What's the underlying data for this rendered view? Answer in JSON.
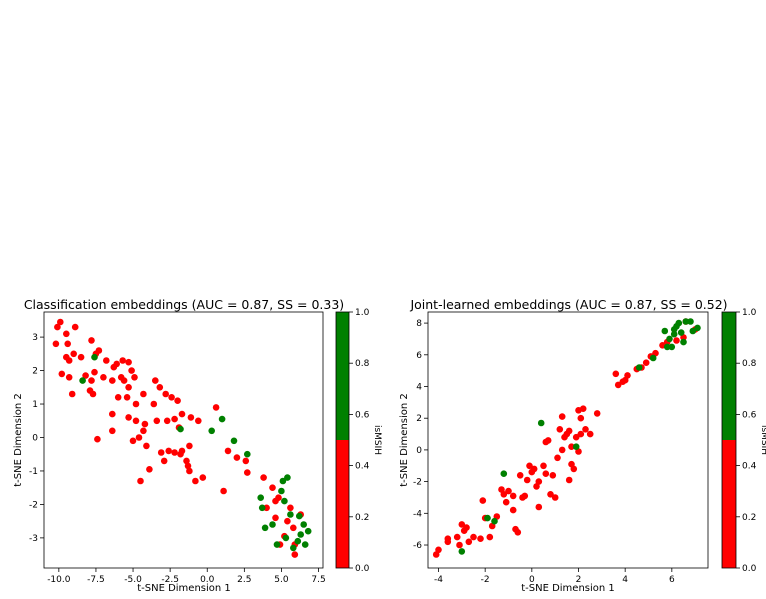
{
  "chart_data": [
    {
      "type": "scatter",
      "title": "Classification embeddings (AUC = 0.87, SS = 0.33)",
      "xlabel": "t-SNE Dimension 1",
      "ylabel": "t-SNE Dimension 2",
      "xlim": [
        -11.0,
        7.8
      ],
      "ylim": [
        -3.9,
        3.75
      ],
      "xticks": [
        "-10.0",
        "-7.5",
        "-5.0",
        "-2.5",
        "0.0",
        "2.5",
        "5.0",
        "7.5"
      ],
      "xtick_values": [
        -10.0,
        -7.5,
        -5.0,
        -2.5,
        0.0,
        2.5,
        5.0,
        7.5
      ],
      "yticks": [
        "-3",
        "-2",
        "-1",
        "0",
        "1",
        "2",
        "3"
      ],
      "ytick_values": [
        -3,
        -2,
        -1,
        0,
        1,
        2,
        3
      ],
      "colorbar": {
        "label": "isMSIH",
        "ticks": [
          "0.0",
          "0.2",
          "0.4",
          "0.6",
          "0.8",
          "1.0"
        ],
        "tick_values": [
          0.0,
          0.2,
          0.4,
          0.6,
          0.8,
          1.0
        ],
        "low_color": "#ff0000",
        "high_color": "#008000"
      },
      "colors": {
        "red": "#ff0000",
        "green": "#008000"
      },
      "red_points": [
        [
          -10.1,
          3.3
        ],
        [
          -9.9,
          3.45
        ],
        [
          -9.5,
          3.1
        ],
        [
          -8.9,
          3.3
        ],
        [
          -10.2,
          2.8
        ],
        [
          -9.4,
          2.8
        ],
        [
          -9.0,
          2.5
        ],
        [
          -9.5,
          2.4
        ],
        [
          -9.3,
          2.3
        ],
        [
          -8.5,
          2.4
        ],
        [
          -7.8,
          2.9
        ],
        [
          -7.5,
          2.5
        ],
        [
          -7.3,
          2.6
        ],
        [
          -6.8,
          2.3
        ],
        [
          -6.3,
          2.1
        ],
        [
          -6.1,
          2.2
        ],
        [
          -5.7,
          2.3
        ],
        [
          -5.3,
          2.25
        ],
        [
          -5.1,
          2.0
        ],
        [
          -4.9,
          1.8
        ],
        [
          -5.3,
          1.5
        ],
        [
          -5.6,
          1.7
        ],
        [
          -5.8,
          1.8
        ],
        [
          -6.4,
          1.7
        ],
        [
          -7.0,
          1.8
        ],
        [
          -7.6,
          1.95
        ],
        [
          -7.8,
          1.7
        ],
        [
          -8.2,
          1.85
        ],
        [
          -9.8,
          1.9
        ],
        [
          -9.3,
          1.8
        ],
        [
          -9.1,
          1.3
        ],
        [
          -7.9,
          1.4
        ],
        [
          -7.7,
          1.3
        ],
        [
          -6.0,
          1.2
        ],
        [
          -5.4,
          1.2
        ],
        [
          -3.5,
          1.7
        ],
        [
          -3.2,
          1.5
        ],
        [
          -4.3,
          1.3
        ],
        [
          -3.6,
          1.0
        ],
        [
          -2.8,
          1.3
        ],
        [
          -2.4,
          1.2
        ],
        [
          -2.0,
          1.1
        ],
        [
          -4.8,
          1.0
        ],
        [
          -6.4,
          0.7
        ],
        [
          -5.3,
          0.6
        ],
        [
          -4.8,
          0.5
        ],
        [
          -4.2,
          0.4
        ],
        [
          -3.4,
          0.5
        ],
        [
          -2.7,
          0.5
        ],
        [
          -2.2,
          0.55
        ],
        [
          -1.7,
          0.7
        ],
        [
          -1.1,
          0.6
        ],
        [
          -0.6,
          0.5
        ],
        [
          0.6,
          0.9
        ],
        [
          -4.3,
          0.2
        ],
        [
          -5.0,
          -0.1
        ],
        [
          -4.6,
          0.0
        ],
        [
          -6.4,
          0.2
        ],
        [
          -7.4,
          -0.05
        ],
        [
          -4.1,
          -0.25
        ],
        [
          -1.9,
          0.3
        ],
        [
          -2.6,
          -0.4
        ],
        [
          -2.2,
          -0.45
        ],
        [
          -1.7,
          -0.4
        ],
        [
          -1.2,
          -0.25
        ],
        [
          -1.4,
          -0.7
        ],
        [
          -1.3,
          -0.85
        ],
        [
          -1.2,
          -1.0
        ],
        [
          -3.1,
          -0.45
        ],
        [
          -3.9,
          -0.95
        ],
        [
          -2.9,
          -0.7
        ],
        [
          -1.8,
          -0.5
        ],
        [
          -4.5,
          -1.3
        ],
        [
          -0.3,
          -1.2
        ],
        [
          -0.8,
          -1.3
        ],
        [
          1.4,
          -0.4
        ],
        [
          2.0,
          -0.6
        ],
        [
          2.6,
          -0.7
        ],
        [
          2.7,
          -1.05
        ],
        [
          1.1,
          -1.6
        ],
        [
          3.8,
          -1.2
        ],
        [
          4.4,
          -1.5
        ],
        [
          4.8,
          -1.8
        ],
        [
          4.0,
          -2.1
        ],
        [
          4.6,
          -1.9
        ],
        [
          5.6,
          -2.1
        ],
        [
          4.6,
          -2.4
        ],
        [
          5.4,
          -2.5
        ],
        [
          6.3,
          -2.3
        ],
        [
          5.8,
          -2.7
        ],
        [
          5.2,
          -2.95
        ],
        [
          5.9,
          -3.2
        ],
        [
          5.9,
          -3.5
        ],
        [
          4.9,
          -3.2
        ]
      ],
      "green_points": [
        [
          -8.4,
          1.7
        ],
        [
          -7.6,
          2.4
        ],
        [
          -1.8,
          0.25
        ],
        [
          0.3,
          0.2
        ],
        [
          1.0,
          0.55
        ],
        [
          1.8,
          -0.1
        ],
        [
          2.7,
          -0.5
        ],
        [
          3.6,
          -1.8
        ],
        [
          3.7,
          -2.1
        ],
        [
          3.9,
          -2.7
        ],
        [
          4.4,
          -2.6
        ],
        [
          5.1,
          -1.3
        ],
        [
          5.4,
          -1.2
        ],
        [
          5.0,
          -1.6
        ],
        [
          5.2,
          -1.9
        ],
        [
          5.6,
          -2.3
        ],
        [
          6.2,
          -2.35
        ],
        [
          6.5,
          -2.6
        ],
        [
          6.8,
          -2.8
        ],
        [
          6.3,
          -2.9
        ],
        [
          6.1,
          -3.1
        ],
        [
          6.6,
          -3.2
        ],
        [
          5.8,
          -3.3
        ],
        [
          5.3,
          -3.0
        ],
        [
          4.7,
          -3.2
        ]
      ]
    },
    {
      "type": "scatter",
      "title": "Joint-learned embeddings (AUC = 0.87, SS = 0.52)",
      "xlabel": "t-SNE Dimension 1",
      "ylabel": "t-SNE Dimension 2",
      "xlim": [
        -4.45,
        7.55
      ],
      "ylim": [
        -7.45,
        8.7
      ],
      "xticks": [
        "-4",
        "-2",
        "0",
        "2",
        "4",
        "6"
      ],
      "xtick_values": [
        -4,
        -2,
        0,
        2,
        4,
        6
      ],
      "yticks": [
        "-6",
        "-4",
        "-2",
        "0",
        "2",
        "4",
        "6",
        "8"
      ],
      "ytick_values": [
        -6,
        -4,
        -2,
        0,
        2,
        4,
        6,
        8
      ],
      "colorbar": {
        "label": "isMSIH",
        "ticks": [
          "0.0",
          "0.2",
          "0.4",
          "0.6",
          "0.8",
          "1.0"
        ],
        "tick_values": [
          0.0,
          0.2,
          0.4,
          0.6,
          0.8,
          1.0
        ],
        "low_color": "#ff0000",
        "high_color": "#008000"
      },
      "colors": {
        "red": "#ff0000",
        "green": "#008000"
      },
      "red_points": [
        [
          -4.1,
          -6.6
        ],
        [
          -4.0,
          -6.3
        ],
        [
          -3.6,
          -5.8
        ],
        [
          -3.6,
          -5.6
        ],
        [
          -3.2,
          -5.5
        ],
        [
          -3.1,
          -6.0
        ],
        [
          -3.0,
          -4.7
        ],
        [
          -2.9,
          -5.1
        ],
        [
          -2.8,
          -4.9
        ],
        [
          -2.7,
          -5.8
        ],
        [
          -2.5,
          -5.5
        ],
        [
          -2.2,
          -5.6
        ],
        [
          -2.1,
          -3.2
        ],
        [
          -2.0,
          -4.3
        ],
        [
          -1.8,
          -5.5
        ],
        [
          -1.7,
          -4.8
        ],
        [
          -1.5,
          -4.2
        ],
        [
          -1.3,
          -2.5
        ],
        [
          -1.2,
          -2.8
        ],
        [
          -1.1,
          -3.3
        ],
        [
          -1.0,
          -2.6
        ],
        [
          -0.8,
          -2.9
        ],
        [
          -0.8,
          -3.8
        ],
        [
          -0.7,
          -5.0
        ],
        [
          -0.6,
          -5.2
        ],
        [
          -0.5,
          -1.6
        ],
        [
          -0.4,
          -3.0
        ],
        [
          -0.3,
          -2.9
        ],
        [
          -0.2,
          -1.9
        ],
        [
          -0.1,
          -1.0
        ],
        [
          0.0,
          -1.4
        ],
        [
          0.1,
          -1.2
        ],
        [
          0.2,
          -2.3
        ],
        [
          0.3,
          -2.0
        ],
        [
          0.3,
          -3.6
        ],
        [
          0.5,
          -1.0
        ],
        [
          0.6,
          -1.5
        ],
        [
          0.6,
          0.5
        ],
        [
          0.7,
          0.6
        ],
        [
          0.8,
          -2.8
        ],
        [
          0.9,
          -1.6
        ],
        [
          1.0,
          -3.0
        ],
        [
          1.1,
          -0.5
        ],
        [
          1.2,
          1.3
        ],
        [
          1.3,
          0.0
        ],
        [
          1.3,
          2.1
        ],
        [
          1.4,
          0.8
        ],
        [
          1.5,
          1.0
        ],
        [
          1.6,
          1.2
        ],
        [
          1.6,
          -1.9
        ],
        [
          1.7,
          -0.9
        ],
        [
          1.7,
          0.2
        ],
        [
          1.8,
          -1.2
        ],
        [
          1.9,
          0.8
        ],
        [
          2.0,
          -0.1
        ],
        [
          2.0,
          2.5
        ],
        [
          2.1,
          1.0
        ],
        [
          2.1,
          2.0
        ],
        [
          2.2,
          2.6
        ],
        [
          2.3,
          1.3
        ],
        [
          2.5,
          1.0
        ],
        [
          2.8,
          2.3
        ],
        [
          3.6,
          4.8
        ],
        [
          3.7,
          4.1
        ],
        [
          3.9,
          4.3
        ],
        [
          4.0,
          4.4
        ],
        [
          4.1,
          4.7
        ],
        [
          4.5,
          5.1
        ],
        [
          4.7,
          5.2
        ],
        [
          4.9,
          5.5
        ],
        [
          5.1,
          5.9
        ],
        [
          5.3,
          6.1
        ],
        [
          5.6,
          6.6
        ],
        [
          5.8,
          6.8
        ],
        [
          6.2,
          6.9
        ],
        [
          6.5,
          7.1
        ],
        [
          7.0,
          7.6
        ],
        [
          6.6,
          8.1
        ]
      ],
      "green_points": [
        [
          -3.0,
          -6.4
        ],
        [
          -1.9,
          -4.3
        ],
        [
          -1.6,
          -4.5
        ],
        [
          -1.2,
          -1.5
        ],
        [
          0.4,
          1.7
        ],
        [
          1.9,
          0.2
        ],
        [
          4.6,
          5.2
        ],
        [
          5.2,
          5.8
        ],
        [
          5.7,
          7.5
        ],
        [
          5.8,
          6.5
        ],
        [
          6.0,
          6.5
        ],
        [
          6.1,
          7.6
        ],
        [
          6.2,
          7.8
        ],
        [
          6.3,
          8.0
        ],
        [
          6.4,
          7.4
        ],
        [
          6.5,
          6.8
        ],
        [
          6.6,
          8.1
        ],
        [
          6.8,
          8.1
        ],
        [
          6.9,
          7.5
        ],
        [
          7.1,
          7.7
        ],
        [
          6.1,
          7.3
        ],
        [
          5.9,
          7.0
        ]
      ]
    }
  ]
}
